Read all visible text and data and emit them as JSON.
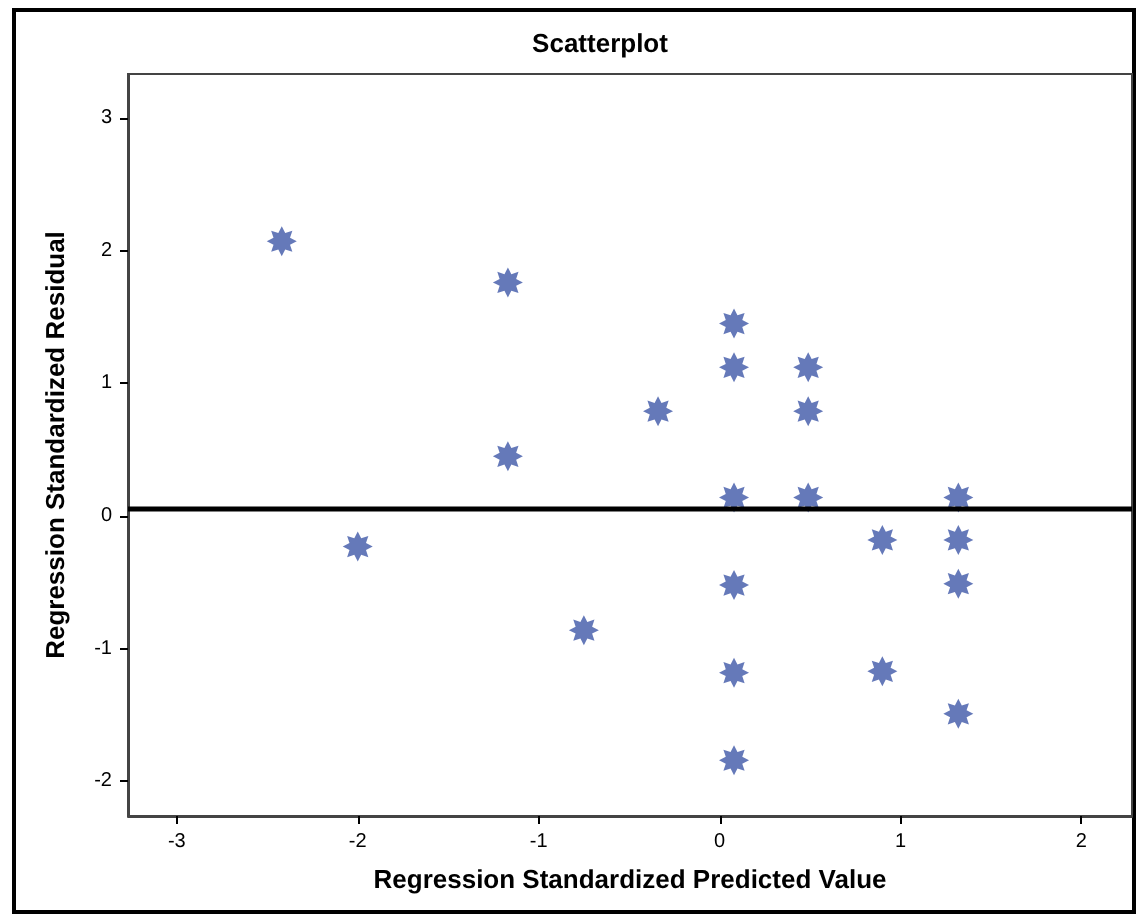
{
  "chart_data": {
    "type": "scatter",
    "title": "Scatterplot",
    "xlabel": "Regression Standardized Predicted Value",
    "ylabel": "Regression Standardized Residual",
    "x": [
      -2.42,
      -2.0,
      -1.17,
      -1.17,
      -0.75,
      -0.34,
      0.08,
      0.08,
      0.08,
      0.08,
      0.08,
      0.08,
      0.49,
      0.49,
      0.49,
      0.9,
      0.9,
      1.32,
      1.32,
      1.32,
      1.32
    ],
    "series": [
      {
        "color": "#3f58a8",
        "values": [
          2.07,
          -0.23,
          1.76,
          0.45,
          -0.86,
          0.79,
          1.45,
          1.12,
          0.14,
          -0.52,
          -1.18,
          -1.84,
          1.12,
          0.79,
          0.14,
          -0.18,
          -1.17,
          0.14,
          -0.18,
          -0.51,
          -1.49
        ]
      }
    ],
    "xlim": [
      -3.27,
      2.28
    ],
    "xticks": [
      -3,
      -2,
      -1,
      0,
      1,
      2
    ],
    "ylim": [
      -2.26,
      3.33
    ],
    "yticks": [
      -2,
      -1,
      0,
      1,
      2,
      3
    ],
    "ref_lines": [
      {
        "axis": "y",
        "value": 0.06,
        "color": "#000000"
      }
    ],
    "grid": false,
    "marker": "star"
  }
}
